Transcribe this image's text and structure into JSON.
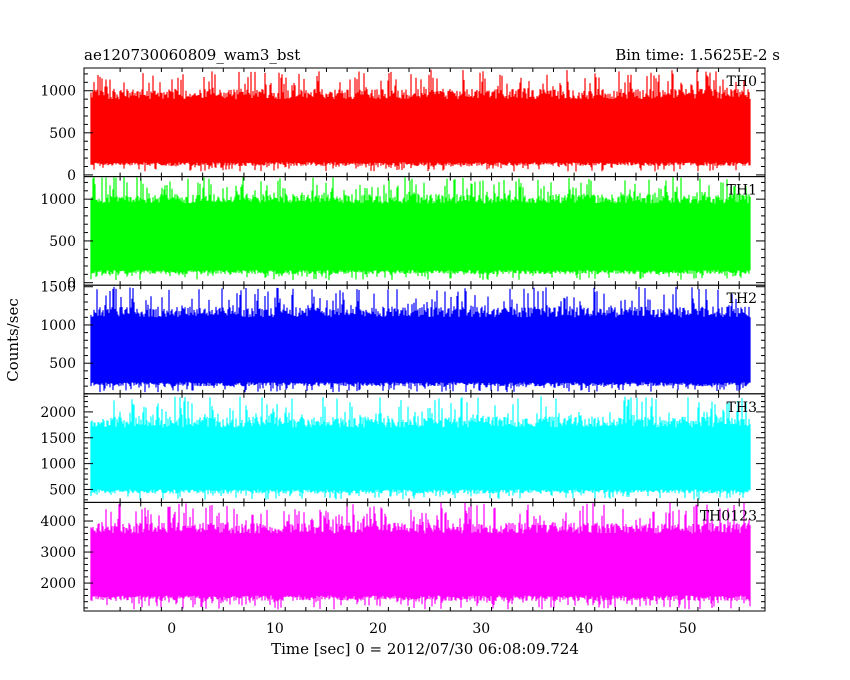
{
  "header": {
    "title": "ae120730060809_wam3_bst",
    "bin_time": "Bin time: 1.5625E-2 s"
  },
  "chart_data": {
    "type": "line",
    "xlabel": "Time [sec] 0 = 2012/07/30 06:08:09.724",
    "ylabel": "Counts/sec",
    "xlim": [
      -8.5,
      57.5
    ],
    "x_ticks": [
      0,
      10,
      20,
      30,
      40,
      50
    ],
    "x_range": [
      -7.8,
      56.0
    ],
    "panels": [
      {
        "name": "TH0",
        "color": "#ff0000",
        "ylim": [
          -20,
          1270
        ],
        "y_ticks": [
          0,
          500,
          1000
        ],
        "y_min": 40,
        "y_max": 1250,
        "y_typ_low": 150,
        "y_typ_high": 900
      },
      {
        "name": "TH1",
        "color": "#00ff00",
        "ylim": [
          -30,
          1270
        ],
        "y_ticks": [
          0,
          500,
          1000
        ],
        "y_min": 30,
        "y_max": 1270,
        "y_typ_low": 150,
        "y_typ_high": 950
      },
      {
        "name": "TH2",
        "color": "#0000ff",
        "ylim": [
          100,
          1520
        ],
        "y_ticks": [
          500,
          1000,
          1500
        ],
        "y_min": 120,
        "y_max": 1500,
        "y_typ_low": 250,
        "y_typ_high": 1100
      },
      {
        "name": "TH3",
        "color": "#00ffff",
        "ylim": [
          250,
          2350
        ],
        "y_ticks": [
          500,
          1000,
          1500,
          2000
        ],
        "y_min": 300,
        "y_max": 2300,
        "y_typ_low": 500,
        "y_typ_high": 1700
      },
      {
        "name": "TH0123",
        "color": "#ff00ff",
        "ylim": [
          1100,
          4600
        ],
        "y_ticks": [
          2000,
          3000,
          4000
        ],
        "y_min": 1150,
        "y_max": 4600,
        "y_typ_low": 1600,
        "y_typ_high": 3600
      }
    ]
  }
}
